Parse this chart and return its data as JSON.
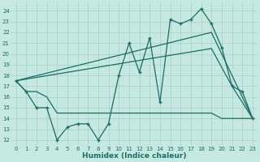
{
  "xlabel": "Humidex (Indice chaleur)",
  "bg_color": "#c5e8e0",
  "grid_color": "#a8cfc8",
  "line_color": "#1a6e68",
  "xlim": [
    -0.5,
    23.5
  ],
  "ylim": [
    11.5,
    24.8
  ],
  "yticks": [
    12,
    13,
    14,
    15,
    16,
    17,
    18,
    19,
    20,
    21,
    22,
    23,
    24
  ],
  "xticks": [
    0,
    1,
    2,
    3,
    4,
    5,
    6,
    7,
    8,
    9,
    10,
    11,
    12,
    13,
    14,
    15,
    16,
    17,
    18,
    19,
    20,
    21,
    22,
    23
  ],
  "line1_x": [
    0,
    1,
    2,
    3,
    4,
    5,
    6,
    7,
    8,
    9,
    10,
    11,
    12,
    13,
    14,
    15,
    16,
    17,
    18,
    19,
    20,
    21,
    22,
    23
  ],
  "line1_y": [
    17.5,
    16.5,
    15.0,
    15.0,
    12.0,
    13.2,
    13.5,
    13.5,
    12.0,
    13.5,
    18.0,
    21.0,
    18.3,
    21.5,
    15.5,
    23.2,
    22.8,
    23.2,
    24.2,
    22.8,
    20.6,
    17.0,
    16.5,
    14.0
  ],
  "line2_x": [
    0,
    1,
    2,
    3,
    4,
    5,
    6,
    7,
    8,
    9,
    10,
    11,
    12,
    13,
    14,
    15,
    16,
    17,
    18,
    19,
    20,
    21,
    22,
    23
  ],
  "line2_y": [
    17.5,
    16.5,
    16.5,
    16.0,
    14.5,
    14.5,
    14.5,
    14.5,
    14.5,
    14.5,
    14.5,
    14.5,
    14.5,
    14.5,
    14.5,
    14.5,
    14.5,
    14.5,
    14.5,
    14.5,
    14.0,
    14.0,
    14.0,
    14.0
  ],
  "line3_x": [
    0,
    19,
    21,
    23
  ],
  "line3_y": [
    17.5,
    20.5,
    17.0,
    14.0
  ],
  "line4_x": [
    0,
    19,
    23
  ],
  "line4_y": [
    17.5,
    22.0,
    14.0
  ]
}
